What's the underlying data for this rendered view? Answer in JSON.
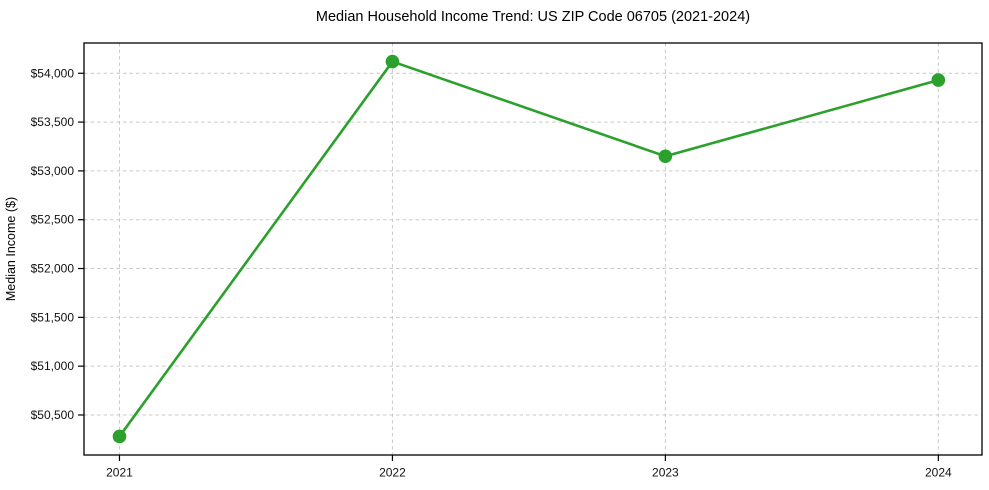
{
  "figure": {
    "background": "#ffffff"
  },
  "chart_data": {
    "type": "line",
    "title": "Median Household Income Trend: US ZIP Code 06705 (2021-2024)",
    "ylabel": "Median Income ($)",
    "xlabel": "",
    "categories": [
      2021,
      2022,
      2023,
      2024
    ],
    "series": [
      {
        "name": "Median Household Income",
        "values": [
          50280,
          54120,
          53150,
          53930
        ]
      }
    ],
    "x_ticks": [
      {
        "value": 2021,
        "label": "2021"
      },
      {
        "value": 2022,
        "label": "2022"
      },
      {
        "value": 2023,
        "label": "2023"
      },
      {
        "value": 2024,
        "label": "2024"
      }
    ],
    "y_ticks": [
      {
        "value": 50500,
        "label": "$50,500"
      },
      {
        "value": 51000,
        "label": "$51,000"
      },
      {
        "value": 51500,
        "label": "$51,500"
      },
      {
        "value": 52000,
        "label": "$52,000"
      },
      {
        "value": 52500,
        "label": "$52,500"
      },
      {
        "value": 53000,
        "label": "$53,000"
      },
      {
        "value": 53500,
        "label": "$53,500"
      },
      {
        "value": 54000,
        "label": "$54,000"
      }
    ],
    "xlim": [
      2020.87,
      2024.16
    ],
    "ylim": [
      50090,
      54310
    ],
    "grid": "dashed",
    "legend": "none",
    "colors": {
      "line": "#2ca02c",
      "marker": "#2ca02c",
      "grid": "#c9c9c9",
      "axis": "#000000",
      "text": "#000000"
    }
  }
}
